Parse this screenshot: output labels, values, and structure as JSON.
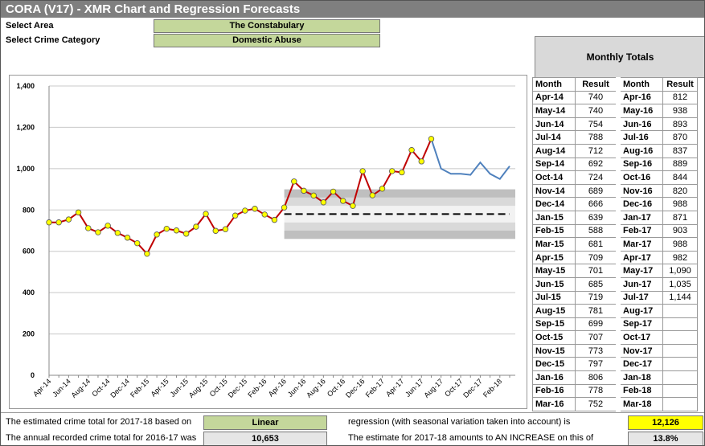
{
  "header": {
    "title": "CORA (V17) - XMR Chart and Regression Forecasts"
  },
  "selectors": [
    {
      "label": "Select Area",
      "value": "The Constabulary"
    },
    {
      "label": "Select Crime Category",
      "value": "Domestic Abuse"
    }
  ],
  "chart_data": {
    "type": "line",
    "categories": [
      "Apr-14",
      null,
      "Jun-14",
      null,
      "Aug-14",
      null,
      "Oct-14",
      null,
      "Dec-14",
      null,
      "Feb-15",
      null,
      "Apr-15",
      null,
      "Jun-15",
      null,
      "Aug-15",
      null,
      "Oct-15",
      null,
      "Dec-15",
      null,
      "Feb-16",
      null,
      "Apr-16",
      null,
      "Jun-16",
      null,
      "Aug-16",
      null,
      "Oct-16",
      null,
      "Dec-16",
      null,
      "Feb-17",
      null,
      "Apr-17",
      null,
      "Jun-17",
      null,
      "Aug-17",
      null,
      "Oct-17",
      null,
      "Dec-17",
      null,
      "Feb-18",
      null
    ],
    "ylim": [
      0,
      1400
    ],
    "yticks": [
      0,
      200,
      400,
      600,
      800,
      {
        "value": 1000,
        "label": "1,000"
      },
      {
        "value": 1200,
        "label": "1,200"
      },
      {
        "value": 1400,
        "label": "1,400"
      }
    ],
    "grid": true,
    "series": [
      {
        "color": "#c00000",
        "marker_color": "#ffff00",
        "values": [
          740,
          740,
          754,
          788,
          712,
          692,
          724,
          689,
          666,
          639,
          588,
          681,
          709,
          701,
          685,
          719,
          781,
          699,
          707,
          773,
          797,
          806,
          778,
          752,
          812,
          938,
          893,
          870,
          837,
          889,
          844,
          820,
          988,
          871,
          903,
          988,
          982,
          1090,
          1035,
          1144,
          null,
          null,
          null,
          null,
          null,
          null,
          null,
          null
        ]
      },
      {
        "color": "#4f81bd",
        "values": [
          null,
          null,
          null,
          null,
          null,
          null,
          null,
          null,
          null,
          null,
          null,
          null,
          null,
          null,
          null,
          null,
          null,
          null,
          null,
          null,
          null,
          null,
          null,
          null,
          null,
          null,
          null,
          null,
          null,
          null,
          null,
          null,
          null,
          null,
          null,
          null,
          null,
          null,
          null,
          1144,
          1000,
          975,
          975,
          970,
          1030,
          975,
          950,
          1012
        ]
      }
    ],
    "control": {
      "color": "#000000",
      "values": [
        null,
        null,
        null,
        null,
        null,
        null,
        null,
        null,
        null,
        null,
        null,
        null,
        null,
        null,
        null,
        null,
        null,
        null,
        null,
        null,
        null,
        null,
        null,
        null,
        780,
        780,
        780,
        780,
        780,
        780,
        780,
        780,
        780,
        780,
        780,
        780,
        780,
        780,
        780,
        780,
        780,
        780,
        780,
        780,
        780,
        780,
        780,
        780
      ],
      "limits": [
        660,
        700,
        740,
        820,
        860,
        900
      ]
    }
  },
  "table": {
    "title": "Monthly Totals",
    "header": [
      "Month",
      "Result",
      "Month",
      "Result"
    ],
    "rows": [
      [
        "Apr-14",
        740,
        "Apr-16",
        812
      ],
      [
        "May-14",
        740,
        "May-16",
        938
      ],
      [
        "Jun-14",
        754,
        "Jun-16",
        893
      ],
      [
        "Jul-14",
        788,
        "Jul-16",
        870
      ],
      [
        "Aug-14",
        712,
        "Aug-16",
        837
      ],
      [
        "Sep-14",
        692,
        "Sep-16",
        889
      ],
      [
        "Oct-14",
        724,
        "Oct-16",
        844
      ],
      [
        "Nov-14",
        689,
        "Nov-16",
        820
      ],
      [
        "Dec-14",
        666,
        "Dec-16",
        988
      ],
      [
        "Jan-15",
        639,
        "Jan-17",
        871
      ],
      [
        "Feb-15",
        588,
        "Feb-17",
        903
      ],
      [
        "Mar-15",
        681,
        "Mar-17",
        988
      ],
      [
        "Apr-15",
        709,
        "Apr-17",
        982
      ],
      [
        "May-15",
        701,
        "May-17",
        "1,090"
      ],
      [
        "Jun-15",
        685,
        "Jun-17",
        "1,035"
      ],
      [
        "Jul-15",
        719,
        "Jul-17",
        "1,144"
      ],
      [
        "Aug-15",
        781,
        "Aug-17",
        null
      ],
      [
        "Sep-15",
        699,
        "Sep-17",
        null
      ],
      [
        "Oct-15",
        707,
        "Oct-17",
        null
      ],
      [
        "Nov-15",
        773,
        "Nov-17",
        null
      ],
      [
        "Dec-15",
        797,
        "Dec-17",
        null
      ],
      [
        "Jan-16",
        806,
        "Jan-18",
        null
      ],
      [
        "Feb-16",
        778,
        "Feb-18",
        null
      ],
      [
        "Mar-16",
        752,
        "Mar-18",
        null
      ]
    ]
  },
  "summary": [
    {
      "text": "The estimated crime total for 2017-18 based on",
      "box": "Linear",
      "text2": "regression (with seasonal variation taken into account) is",
      "box2": "12,126"
    },
    {
      "text": "The annual recorded crime total for 2016-17 was",
      "box": "10,653",
      "text2": "The estimate for 2017-18 amounts to AN INCREASE on this of",
      "box2": "13.8%"
    }
  ]
}
